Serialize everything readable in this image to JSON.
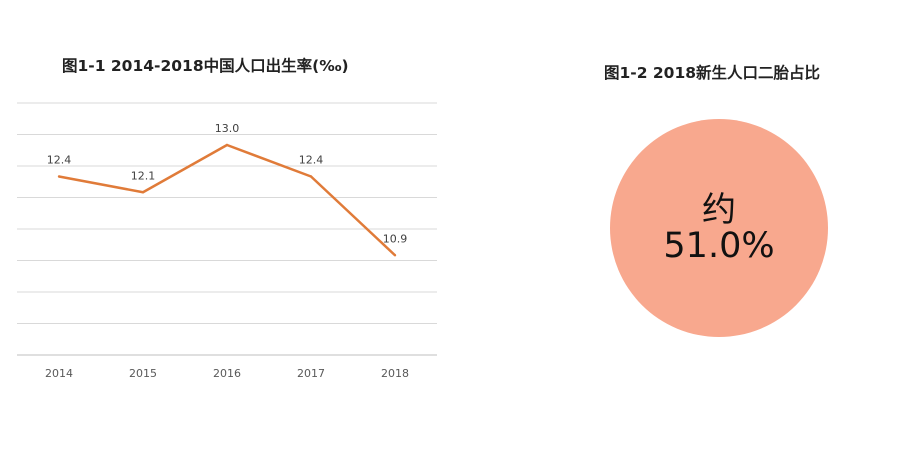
{
  "chart_data": [
    {
      "type": "line",
      "title": "图1-1 2014-2018中国人口出生率(‰)",
      "categories": [
        "2014",
        "2015",
        "2016",
        "2017",
        "2018"
      ],
      "series": [
        {
          "values": [
            12.4,
            12.1,
            13.0,
            12.4,
            10.9
          ]
        }
      ],
      "data_labels": [
        "12.4",
        "12.1",
        "13.0",
        "12.4",
        "10.9"
      ],
      "ylim": [
        9,
        13.8
      ],
      "grid": true,
      "color": "#E07B39"
    },
    {
      "type": "pie",
      "title": "图1-2 2018新生人口二胎占比",
      "label_prefix": "约",
      "label_value": "51.0%",
      "value": 51.0,
      "color": "#F8A88E"
    }
  ]
}
